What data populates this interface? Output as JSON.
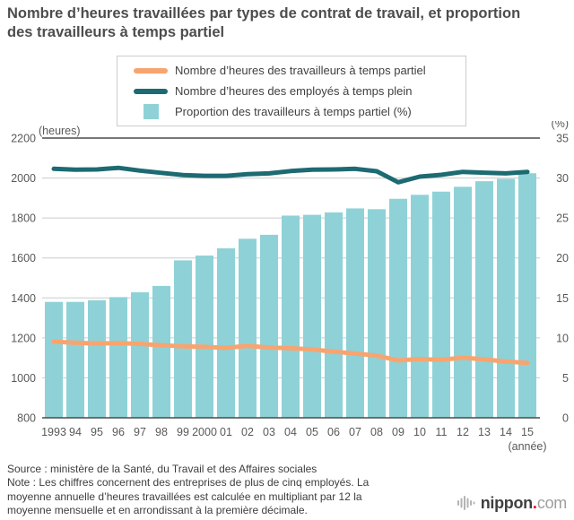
{
  "title": {
    "line1": "Nombre d’heures travaillées par types de contrat de travail, et proportion",
    "line2": "des travailleurs à temps partiel"
  },
  "legend": {
    "items": [
      {
        "label": "Nombre d’heures des travailleurs à temps partiel",
        "swatch": "line",
        "color": "#f8a470"
      },
      {
        "label": "Nombre d’heures des employés à temps plein",
        "swatch": "line",
        "color": "#1d6a72"
      },
      {
        "label": "Proportion des travailleurs à temps partiel (%)",
        "swatch": "square",
        "color": "#8ed2d7"
      }
    ]
  },
  "chart_data": {
    "type": "bar+line combo",
    "categories": [
      "1993",
      "94",
      "95",
      "96",
      "97",
      "98",
      "99",
      "2000",
      "01",
      "02",
      "03",
      "04",
      "05",
      "06",
      "07",
      "08",
      "09",
      "10",
      "11",
      "12",
      "13",
      "14",
      "15"
    ],
    "x_unit_label": "(année)",
    "left_axis": {
      "unit": "(heures)",
      "min": 800,
      "max": 2200,
      "ticks": [
        2200,
        2000,
        1800,
        1600,
        1400,
        1200,
        1000,
        800
      ]
    },
    "right_axis": {
      "unit": "(%)",
      "min": 0,
      "max": 35,
      "ticks": [
        35,
        30,
        25,
        20,
        15,
        10,
        5,
        0
      ]
    },
    "grid": true,
    "legend_position": "top",
    "series": [
      {
        "name": "Proportion des travailleurs à temps partiel (%)",
        "type": "bar",
        "axis": "right",
        "color": "#8ed2d7",
        "values": [
          14.5,
          14.5,
          14.7,
          15.1,
          15.7,
          16.5,
          19.7,
          20.3,
          21.2,
          22.4,
          22.9,
          25.3,
          25.4,
          25.7,
          26.2,
          26.1,
          27.4,
          27.9,
          28.3,
          28.9,
          29.6,
          29.9,
          30.6
        ]
      },
      {
        "name": "Nombre d’heures des travailleurs à temps partiel",
        "type": "line",
        "axis": "left",
        "color": "#f8a470",
        "values": [
          1181,
          1176,
          1172,
          1174,
          1170,
          1163,
          1158,
          1155,
          1150,
          1160,
          1152,
          1148,
          1142,
          1131,
          1122,
          1111,
          1087,
          1094,
          1090,
          1101,
          1092,
          1082,
          1075
        ]
      },
      {
        "name": "Nombre d’heures des employés à temps plein",
        "type": "line",
        "axis": "left",
        "color": "#1d6a72",
        "values": [
          2046,
          2042,
          2043,
          2051,
          2037,
          2026,
          2015,
          2011,
          2011,
          2019,
          2023,
          2035,
          2042,
          2043,
          2046,
          2034,
          1979,
          2007,
          2016,
          2031,
          2027,
          2023,
          2031
        ]
      }
    ]
  },
  "footer": {
    "source": "Source : ministère de la Santé, du Travail et des Affaires sociales",
    "note_lines": [
      "Note : Les chiffres concernent des entreprises de plus de cinq employés. La",
      "moyenne annuelle d’heures travaillées est calculée en multipliant par 12 la",
      "moyenne mensuelle et en arrondissant à la première décimale."
    ]
  },
  "logo": {
    "name": "nippon",
    "dot": ".",
    "tld": "com"
  }
}
